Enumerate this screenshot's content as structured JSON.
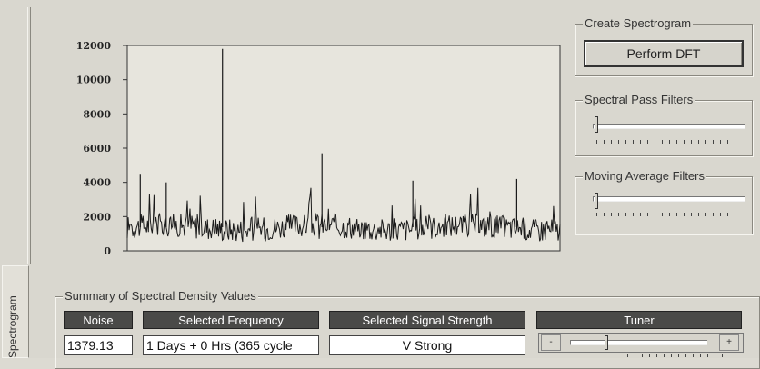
{
  "tab": {
    "label": "Spectrogram"
  },
  "chart_data": {
    "type": "line",
    "title": "",
    "xlabel": "",
    "ylabel": "",
    "ylim": [
      0,
      12000
    ],
    "y_ticks": [
      "12000",
      "10000",
      "8000",
      "6000",
      "4000",
      "2000",
      "0"
    ],
    "baseline_mean": 1380,
    "noise_band": [
      300,
      3200
    ],
    "spikes": [
      {
        "x_fraction": 0.22,
        "value": 11800
      },
      {
        "x_fraction": 0.45,
        "value": 5700
      },
      {
        "x_fraction": 0.03,
        "value": 4500
      },
      {
        "x_fraction": 0.09,
        "value": 4000
      },
      {
        "x_fraction": 0.66,
        "value": 4100
      },
      {
        "x_fraction": 0.9,
        "value": 4200
      }
    ],
    "grid": false,
    "color": "#1a1a1a"
  },
  "create_spectrogram": {
    "title": "Create Spectrogram",
    "button_label": "Perform DFT"
  },
  "spectral_pass": {
    "title": "Spectral Pass Filters",
    "level": 0.0
  },
  "moving_average": {
    "title": "Moving Average Filters",
    "level": 0.0
  },
  "summary": {
    "title": "Summary of Spectral Density Values",
    "noise_header": "Noise",
    "noise_value": "1379.13",
    "frequency_header": "Selected Frequency",
    "frequency_value": "1 Days + 0 Hrs (365 cycle",
    "strength_header": "Selected Signal Strength",
    "strength_value": "V Strong",
    "tuner_header": "Tuner",
    "tuner_left": "-",
    "tuner_right": "+",
    "tuner_level": 0.25
  }
}
